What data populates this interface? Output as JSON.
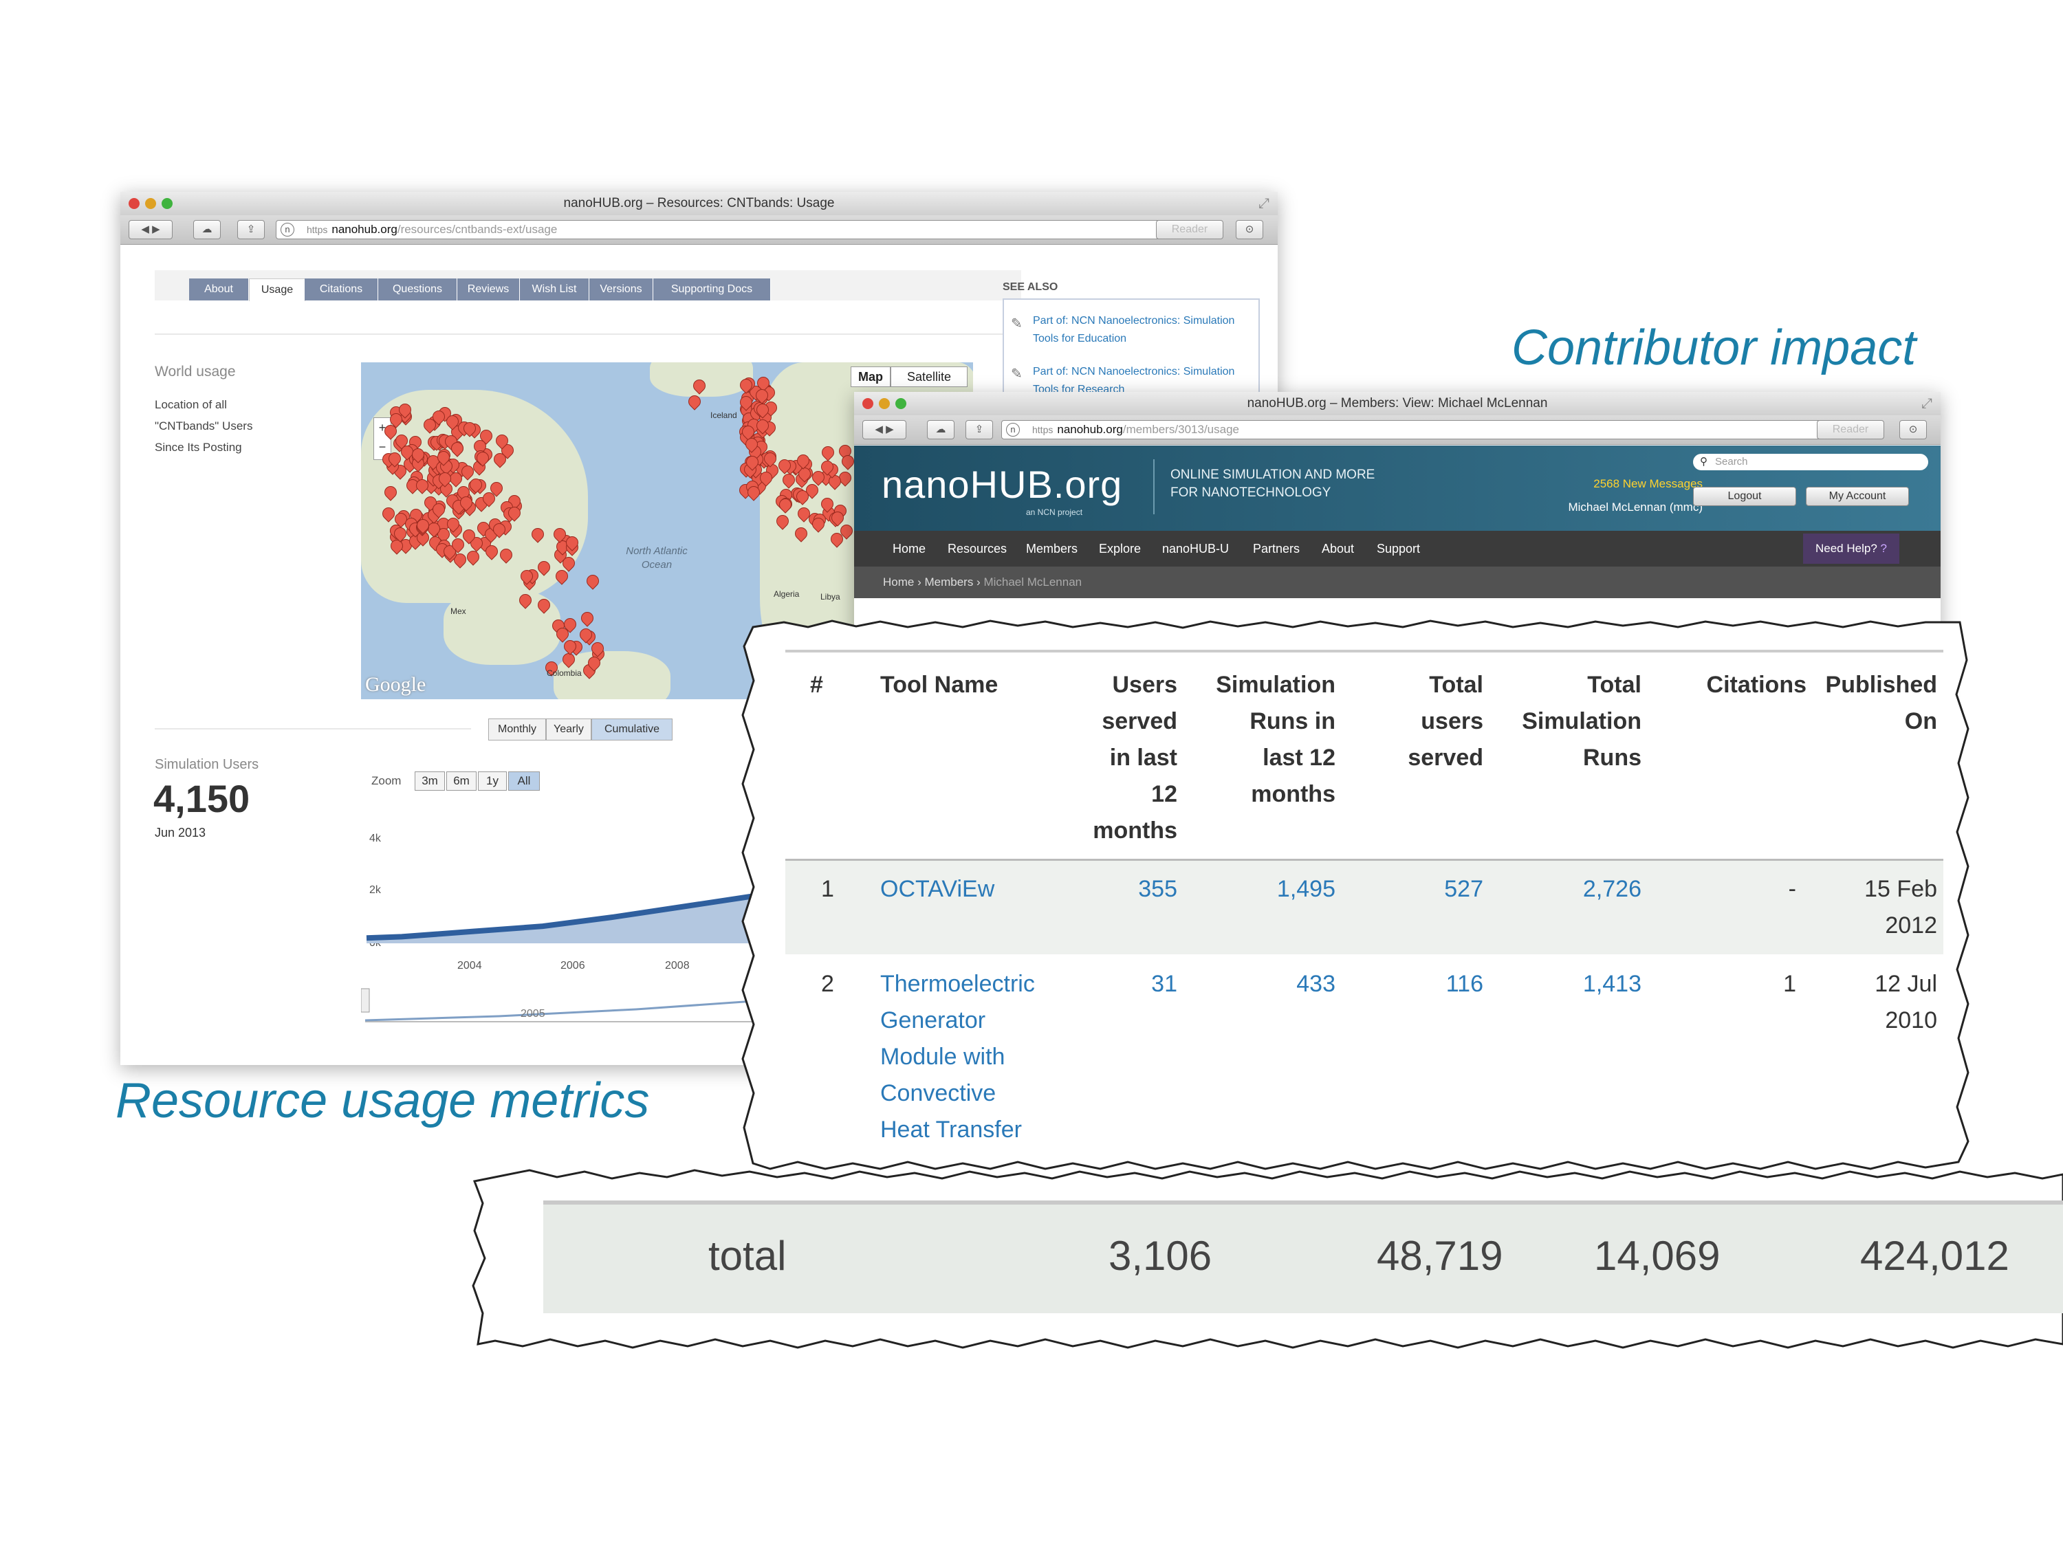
{
  "captions": {
    "contributor": "Contributor impact",
    "resource": "Resource usage metrics"
  },
  "window1": {
    "title": "nanoHUB.org – Resources: CNTbands: Usage",
    "url": {
      "https": "https",
      "host": "nanohub.org",
      "path": "/resources/cntbands-ext/usage"
    },
    "reader_label": "Reader",
    "tabs": [
      "About",
      "Usage",
      "Citations",
      "Questions",
      "Reviews",
      "Wish List",
      "Versions",
      "Supporting Docs"
    ],
    "active_tab": "Usage",
    "see_also": {
      "heading": "SEE ALSO",
      "items": [
        "Part of: NCN Nanoelectronics: Simulation Tools for Education",
        "Part of: NCN Nanoelectronics: Simulation Tools for Research"
      ]
    },
    "world_usage": {
      "heading": "World usage",
      "desc_lines": [
        "Location of all",
        "\"CNTbands\" Users",
        "Since Its Posting"
      ]
    },
    "map": {
      "map_label": "Map",
      "satellite_label": "Satellite",
      "labels": {
        "iceland": "Iceland",
        "ocean": "North Atlantic Ocean",
        "algeria": "Algeria",
        "libya": "Libya",
        "mexico": "Mex",
        "colombia": "Colombia"
      },
      "google": "Google"
    },
    "period_buttons": [
      "Monthly",
      "Yearly",
      "Cumulative"
    ],
    "period_selected": "Cumulative",
    "sim_users": {
      "label": "Simulation Users",
      "value": "4,150",
      "date": "Jun 2013"
    },
    "zoom": {
      "label": "Zoom",
      "options": [
        "3m",
        "6m",
        "1y",
        "All"
      ],
      "selected": "All"
    },
    "chart_data": {
      "type": "area",
      "x": [
        2002.5,
        2003,
        2004,
        2005,
        2006,
        2007,
        2008,
        2009,
        2009.5
      ],
      "values": [
        200,
        250,
        450,
        650,
        1000,
        1400,
        1800,
        2150,
        2300
      ],
      "y_tick_labels": [
        "4k",
        "2k",
        "0k"
      ],
      "x_tick_labels": [
        "2004",
        "2006",
        "2008"
      ],
      "navigator_tick": "2005",
      "ylim": [
        0,
        4000
      ],
      "color": "#2f5f9e"
    }
  },
  "window2": {
    "title": "nanoHUB.org – Members: View: Michael McLennan",
    "url": {
      "https": "https",
      "host": "nanohub.org",
      "path": "/members/3013/usage"
    },
    "reader_label": "Reader",
    "logo": "nanoHUB.org",
    "logo_sub": "an NCN project",
    "tagline": [
      "ONLINE SIMULATION AND MORE",
      "FOR NANOTECHNOLOGY"
    ],
    "messages": "2568 New Messages",
    "user": "Michael McLennan (mmc)",
    "search_placeholder": "Search",
    "logout": "Logout",
    "my_account": "My Account",
    "nav": [
      "Home",
      "Resources",
      "Members",
      "Explore",
      "nanoHUB-U",
      "Partners",
      "About",
      "Support"
    ],
    "need_help": "Need Help?",
    "breadcrumb": [
      "Home",
      "Members",
      "Michael McLennan"
    ]
  },
  "table": {
    "headers": {
      "num": "#",
      "tool": "Tool Name",
      "users12": [
        "Users",
        "served",
        "in last",
        "12",
        "months"
      ],
      "runs12": [
        "Simulation",
        "Runs in",
        "last 12",
        "months"
      ],
      "total_users": [
        "Total",
        "users",
        "served"
      ],
      "total_runs": [
        "Total",
        "Simulation",
        "Runs"
      ],
      "citations": "Citations",
      "published": [
        "Published",
        "On"
      ]
    },
    "rows": [
      {
        "num": "1",
        "tool": [
          "OCTAViEw"
        ],
        "users12": "355",
        "runs12": "1,495",
        "total_users": "527",
        "total_runs": "2,726",
        "citations": "-",
        "published": [
          "15 Feb",
          "2012"
        ]
      },
      {
        "num": "2",
        "tool": [
          "Thermoelectric",
          "Generator",
          "Module with",
          "Convective",
          "Heat Transfer"
        ],
        "users12": "31",
        "runs12": "433",
        "total_users": "116",
        "total_runs": "1,413",
        "citations": "1",
        "published": [
          "12 Jul",
          "2010"
        ]
      }
    ],
    "total": {
      "label": "total",
      "users12": "3,106",
      "runs12": "48,719",
      "total_users": "14,069",
      "total_runs": "424,012"
    }
  }
}
